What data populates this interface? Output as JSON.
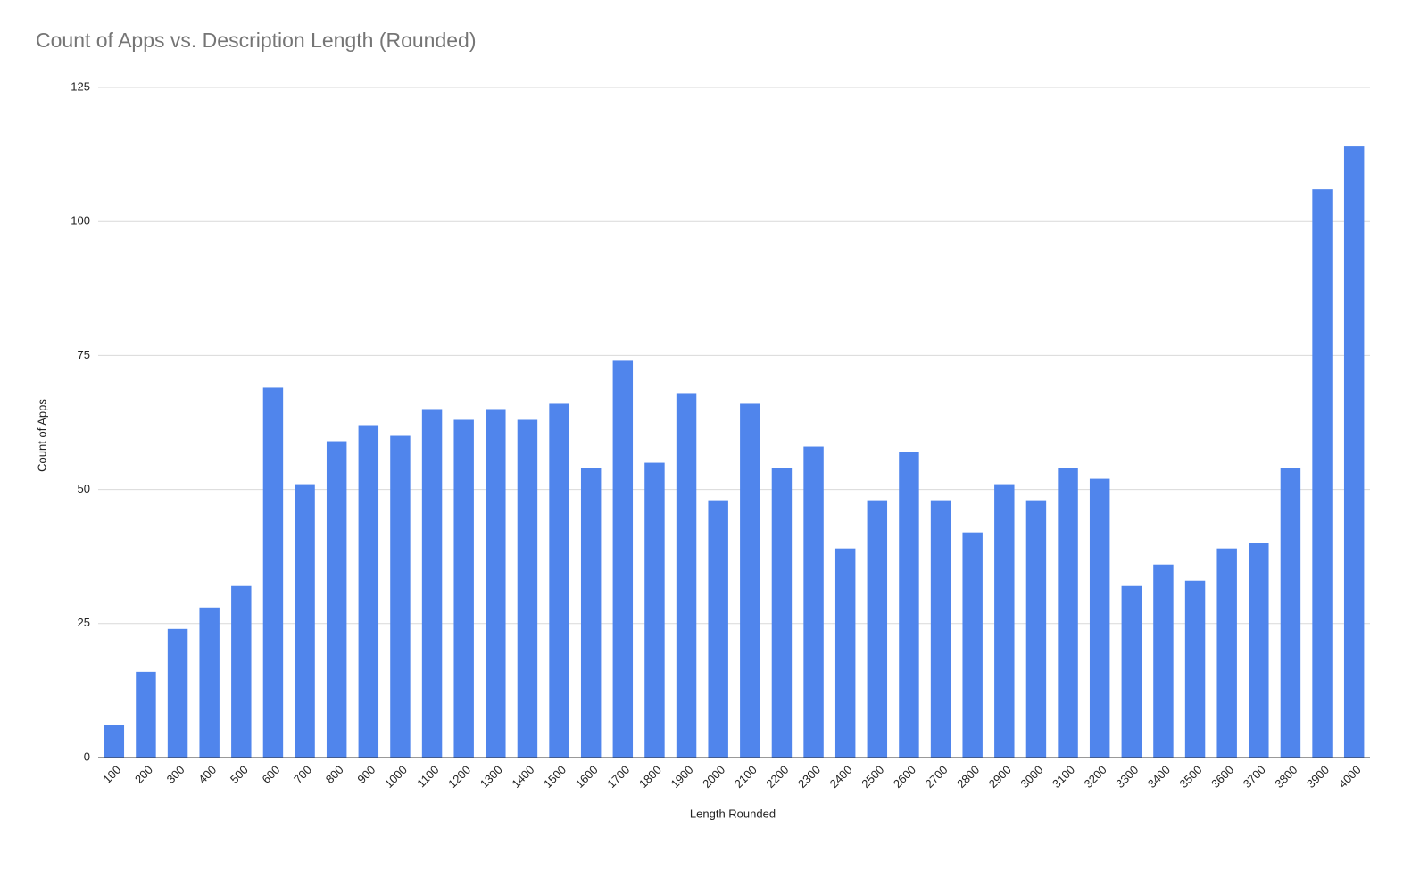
{
  "chart_data": {
    "type": "bar",
    "title": "Count of Apps vs. Description Length (Rounded)",
    "x_label": "Length Rounded",
    "y_label": "Count of Apps",
    "categories": [
      "100",
      "200",
      "300",
      "400",
      "500",
      "600",
      "700",
      "800",
      "900",
      "1000",
      "1100",
      "1200",
      "1300",
      "1400",
      "1500",
      "1600",
      "1700",
      "1800",
      "1900",
      "2000",
      "2100",
      "2200",
      "2300",
      "2400",
      "2500",
      "2600",
      "2700",
      "2800",
      "2900",
      "3000",
      "3100",
      "3200",
      "3300",
      "3400",
      "3500",
      "3600",
      "3700",
      "3800",
      "3900",
      "4000"
    ],
    "values": [
      6,
      16,
      24,
      28,
      32,
      69,
      51,
      59,
      62,
      60,
      65,
      63,
      65,
      63,
      66,
      54,
      74,
      55,
      68,
      48,
      66,
      54,
      58,
      39,
      48,
      57,
      48,
      42,
      51,
      48,
      54,
      52,
      32,
      36,
      33,
      39,
      40,
      54,
      106,
      114
    ],
    "color": "#5085ec",
    "ylim": [
      0,
      125
    ],
    "yticks": [
      0,
      25,
      50,
      75,
      100,
      125
    ],
    "grid": true
  }
}
